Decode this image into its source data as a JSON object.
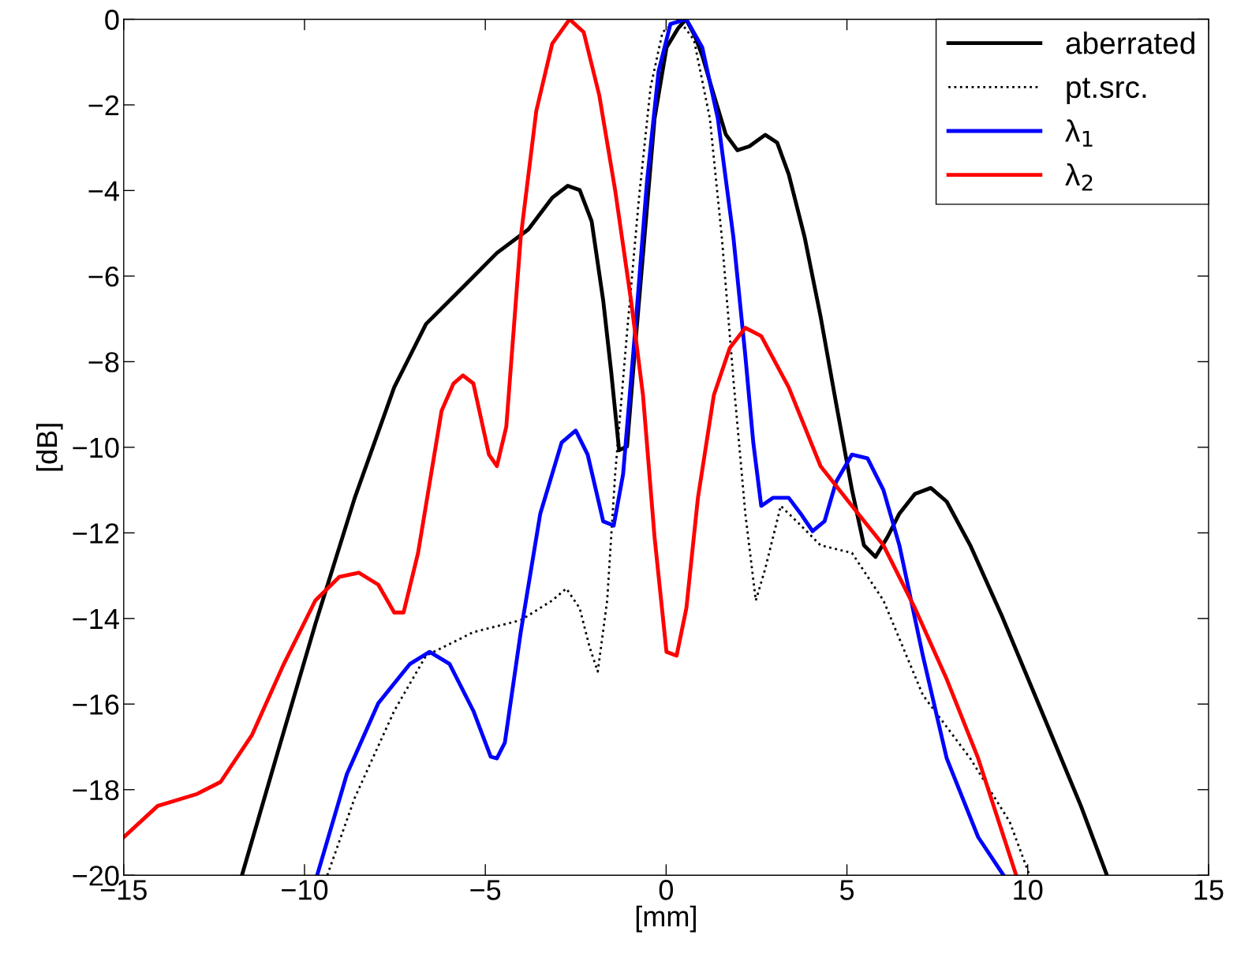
{
  "chart_data": {
    "type": "line",
    "xlabel": "[mm]",
    "ylabel": "[dB]",
    "xlim": [
      -15,
      15
    ],
    "xticks": [
      {
        "value": -15,
        "label": "−15"
      },
      {
        "value": -10,
        "label": "−10"
      },
      {
        "value": -5,
        "label": "−5"
      },
      0,
      5,
      10,
      15
    ],
    "ylim": [
      -20,
      0
    ],
    "yticks": [
      {
        "value": -20,
        "label": "−20"
      },
      {
        "value": -18,
        "label": "−18"
      },
      {
        "value": -16,
        "label": "−16"
      },
      {
        "value": -14,
        "label": "−14"
      },
      {
        "value": -12,
        "label": "−12"
      },
      {
        "value": -10,
        "label": "−10"
      },
      {
        "value": -8,
        "label": "−8"
      },
      {
        "value": -6,
        "label": "−6"
      },
      {
        "value": -4,
        "label": "−4"
      },
      {
        "value": -2,
        "label": "−2"
      },
      0
    ],
    "grid": false,
    "legend": "top right",
    "series": [
      {
        "name": "aberrated",
        "color": "#000000",
        "line_style": "solid",
        "x": [
          -11.73,
          -10.79,
          -9.7,
          -8.61,
          -7.52,
          -6.64,
          -5.55,
          -4.68,
          -3.81,
          -3.15,
          -2.72,
          -2.39,
          -2.06,
          -1.74,
          -1.52,
          -1.3,
          -1.08,
          -0.86,
          -0.64,
          -0.32,
          0.01,
          0.34,
          0.55,
          0.8,
          1.0,
          1.32,
          1.65,
          1.97,
          2.3,
          2.74,
          3.07,
          3.39,
          3.83,
          4.27,
          4.7,
          5.14,
          5.47,
          5.79,
          6.12,
          6.45,
          6.88,
          7.32,
          7.76,
          8.41,
          9.29,
          10.38,
          11.47,
          12.19
        ],
        "values": [
          -20,
          -17.27,
          -14.13,
          -11.18,
          -8.6,
          -7.12,
          -6.2,
          -5.46,
          -4.91,
          -4.17,
          -3.89,
          -3.99,
          -4.72,
          -6.57,
          -8.23,
          -10.07,
          -9.98,
          -7.68,
          -5.5,
          -2.32,
          -0.66,
          -0.2,
          0,
          -0.4,
          -0.85,
          -1.77,
          -2.69,
          -3.06,
          -2.97,
          -2.7,
          -2.88,
          -3.62,
          -5.09,
          -6.94,
          -8.97,
          -11.0,
          -12.29,
          -12.56,
          -12.1,
          -11.55,
          -11.09,
          -10.95,
          -11.27,
          -12.29,
          -13.95,
          -16.16,
          -18.38,
          -20
        ]
      },
      {
        "name": "pt.src.",
        "color": "#000000",
        "line_style": "dotted",
        "x": [
          -9.37,
          -8.61,
          -7.52,
          -6.64,
          -5.33,
          -4.02,
          -3.15,
          -2.76,
          -2.39,
          -2.11,
          -1.89,
          -1.63,
          -1.41,
          -1.08,
          -0.75,
          -0.43,
          -0.1,
          0.34,
          0.77,
          1.21,
          1.54,
          1.86,
          2.19,
          2.48,
          2.74,
          3.17,
          3.61,
          4.27,
          5.14,
          6.01,
          7.1,
          8.41,
          9.5,
          10.05
        ],
        "values": [
          -20,
          -18.19,
          -16.16,
          -14.87,
          -14.32,
          -14.04,
          -13.58,
          -13.3,
          -13.76,
          -14.69,
          -15.24,
          -13.58,
          -10.63,
          -7.31,
          -4.17,
          -1.59,
          -0.3,
          0,
          -0.48,
          -2.32,
          -5.09,
          -8.41,
          -11.55,
          -13.58,
          -12.84,
          -11.37,
          -11.73,
          -12.29,
          -12.47,
          -13.58,
          -15.79,
          -17.27,
          -18.75,
          -20
        ]
      },
      {
        "name": "λ$_{1}$",
        "color": "#0000ff",
        "line_style": "solid",
        "x": [
          -9.65,
          -8.83,
          -7.96,
          -7.08,
          -6.54,
          -5.99,
          -5.33,
          -4.85,
          -4.68,
          -4.46,
          -4.02,
          -3.48,
          -2.89,
          -2.5,
          -2.17,
          -1.74,
          -1.45,
          -1.19,
          -0.86,
          -0.53,
          -0.21,
          0.12,
          0.56,
          1.0,
          1.43,
          1.86,
          2.19,
          2.41,
          2.63,
          2.96,
          3.39,
          3.72,
          4.05,
          4.38,
          4.7,
          5.14,
          5.57,
          6.01,
          6.45,
          7.1,
          7.76,
          8.63,
          9.33
        ],
        "values": [
          -20,
          -17.64,
          -15.98,
          -15.06,
          -14.78,
          -15.06,
          -16.16,
          -17.23,
          -17.27,
          -16.9,
          -14.32,
          -11.55,
          -9.89,
          -9.61,
          -10.17,
          -11.73,
          -11.83,
          -10.63,
          -7.31,
          -3.8,
          -1.22,
          -0.11,
          0,
          -0.66,
          -2.32,
          -5.09,
          -7.86,
          -9.89,
          -11.37,
          -11.18,
          -11.18,
          -11.55,
          -11.96,
          -11.73,
          -10.81,
          -10.17,
          -10.26,
          -11.0,
          -12.29,
          -14.87,
          -17.27,
          -19.11,
          -20
        ]
      },
      {
        "name": "λ$_{2}$",
        "color": "#ff0000",
        "line_style": "solid",
        "x": [
          -15,
          -14.06,
          -12.97,
          -12.32,
          -11.45,
          -10.57,
          -9.7,
          -9.04,
          -8.5,
          -7.96,
          -7.52,
          -7.26,
          -6.86,
          -6.21,
          -5.88,
          -5.62,
          -5.33,
          -4.9,
          -4.68,
          -4.42,
          -4.02,
          -3.59,
          -3.15,
          -2.67,
          -2.28,
          -1.85,
          -1.41,
          -0.97,
          -0.64,
          -0.32,
          0.01,
          0.29,
          0.56,
          0.88,
          1.32,
          1.76,
          2.19,
          2.63,
          3.39,
          4.27,
          5.14,
          6.01,
          6.88,
          7.76,
          8.63,
          9.68
        ],
        "values": [
          -19.11,
          -18.38,
          -18.1,
          -17.82,
          -16.72,
          -15.06,
          -13.58,
          -13.03,
          -12.93,
          -13.21,
          -13.86,
          -13.86,
          -12.47,
          -9.15,
          -8.51,
          -8.32,
          -8.51,
          -10.17,
          -10.44,
          -9.52,
          -5.09,
          -2.14,
          -0.57,
          0,
          -0.3,
          -1.77,
          -3.99,
          -6.57,
          -8.78,
          -12.1,
          -14.78,
          -14.87,
          -13.76,
          -11.18,
          -8.78,
          -7.68,
          -7.21,
          -7.4,
          -8.6,
          -10.44,
          -11.37,
          -12.29,
          -13.76,
          -15.42,
          -17.27,
          -20
        ]
      }
    ]
  }
}
